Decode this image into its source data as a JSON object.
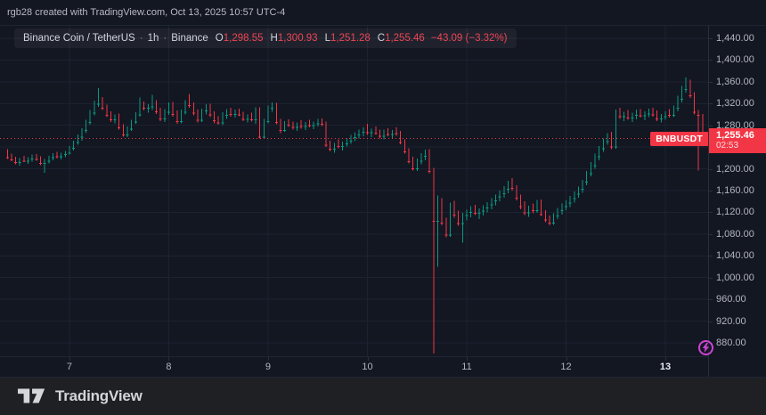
{
  "header": {
    "caption": "rgb28 created with TradingView.com, Oct 13, 2025 10:57 UTC-4"
  },
  "legend": {
    "symbol_title": "Binance Coin / TetherUS",
    "separator": "·",
    "interval": "1h",
    "exchange": "Binance",
    "ohlc": [
      {
        "label": "O",
        "value": "1,298.55"
      },
      {
        "label": "H",
        "value": "1,300.93"
      },
      {
        "label": "L",
        "value": "1,251.28"
      },
      {
        "label": "C",
        "value": "1,255.46"
      }
    ],
    "change": "−43.09 (−3.32%)"
  },
  "price_scale": {
    "ticks": [
      {
        "value": 1440,
        "label": "1,440.00"
      },
      {
        "value": 1400,
        "label": "1,400.00"
      },
      {
        "value": 1360,
        "label": "1,360.00"
      },
      {
        "value": 1320,
        "label": "1,320.00"
      },
      {
        "value": 1280,
        "label": "1,280.00"
      },
      {
        "value": 1200,
        "label": "1,200.00"
      },
      {
        "value": 1160,
        "label": "1,160.00"
      },
      {
        "value": 1120,
        "label": "1,120.00"
      },
      {
        "value": 1080,
        "label": "1,080.00"
      },
      {
        "value": 1040,
        "label": "1,040.00"
      },
      {
        "value": 1000,
        "label": "1,000.00"
      },
      {
        "value": 960,
        "label": "960.00"
      },
      {
        "value": 920,
        "label": "920.00"
      },
      {
        "value": 880,
        "label": "880.00"
      }
    ],
    "last_price_label": {
      "price": "1,255.46",
      "countdown": "02:53"
    }
  },
  "symbol_tag": {
    "text": "BNBUSDT"
  },
  "time_scale": {
    "labels": [
      {
        "text": "7",
        "emphasized": false
      },
      {
        "text": "8",
        "emphasized": false
      },
      {
        "text": "9",
        "emphasized": false
      },
      {
        "text": "10",
        "emphasized": false
      },
      {
        "text": "11",
        "emphasized": false
      },
      {
        "text": "12",
        "emphasized": false
      },
      {
        "text": "13",
        "emphasized": true
      }
    ]
  },
  "boost": {
    "icon": "lightning-icon"
  },
  "footer": {
    "brand": "TradingView"
  },
  "colors": {
    "background": "#131722",
    "up": "#089981",
    "down": "#f23645",
    "accent_red": "#f23645",
    "grid": "#1d2231",
    "axis_text": "#b2b5be",
    "boost": "#cd43d6"
  },
  "chart_data": {
    "type": "candlestick",
    "title": "Binance Coin / TetherUS, 1h, Binance",
    "symbol": "BNBUSDT",
    "timeframe": "1h",
    "last": {
      "open": 1298.55,
      "high": 1300.93,
      "low": 1251.28,
      "close": 1255.46,
      "change": -43.09,
      "change_pct": -3.32
    },
    "x_axis": {
      "labels": [
        "7",
        "8",
        "9",
        "10",
        "11",
        "12",
        "13"
      ],
      "unit": "day of month, Oct 2025",
      "day_start_indices": [
        15,
        39,
        63,
        87,
        111,
        135,
        159
      ],
      "hours_per_candle": 1
    },
    "y_axis": {
      "visible_range": [
        856,
        1452
      ],
      "grid_values": [
        1440,
        1400,
        1360,
        1320,
        1280,
        1240,
        1200,
        1160,
        1120,
        1080,
        1040,
        1000,
        960,
        920,
        880
      ]
    },
    "price_line_value": 1255.46,
    "candles": [
      [
        1232,
        1236,
        1218,
        1221
      ],
      [
        1221,
        1228,
        1214,
        1217
      ],
      [
        1217,
        1222,
        1208,
        1212
      ],
      [
        1212,
        1220,
        1206,
        1218
      ],
      [
        1218,
        1224,
        1212,
        1215
      ],
      [
        1215,
        1221,
        1209,
        1219
      ],
      [
        1219,
        1226,
        1213,
        1222
      ],
      [
        1222,
        1227,
        1215,
        1218
      ],
      [
        1218,
        1223,
        1207,
        1211
      ],
      [
        1211,
        1218,
        1193,
        1215
      ],
      [
        1215,
        1224,
        1210,
        1221
      ],
      [
        1221,
        1229,
        1216,
        1226
      ],
      [
        1226,
        1231,
        1219,
        1223
      ],
      [
        1223,
        1230,
        1217,
        1227
      ],
      [
        1227,
        1233,
        1221,
        1230
      ],
      [
        1230,
        1242,
        1226,
        1239
      ],
      [
        1239,
        1252,
        1234,
        1249
      ],
      [
        1249,
        1263,
        1244,
        1259
      ],
      [
        1259,
        1275,
        1252,
        1271
      ],
      [
        1271,
        1290,
        1266,
        1286
      ],
      [
        1286,
        1308,
        1281,
        1303
      ],
      [
        1303,
        1325,
        1298,
        1320
      ],
      [
        1320,
        1348,
        1314,
        1326
      ],
      [
        1326,
        1332,
        1308,
        1312
      ],
      [
        1312,
        1318,
        1295,
        1299
      ],
      [
        1299,
        1306,
        1286,
        1291
      ],
      [
        1291,
        1300,
        1284,
        1296
      ],
      [
        1296,
        1302,
        1272,
        1276
      ],
      [
        1276,
        1282,
        1259,
        1263
      ],
      [
        1263,
        1278,
        1258,
        1274
      ],
      [
        1274,
        1290,
        1270,
        1287
      ],
      [
        1287,
        1304,
        1283,
        1300
      ],
      [
        1300,
        1331,
        1296,
        1318
      ],
      [
        1318,
        1324,
        1307,
        1312
      ],
      [
        1312,
        1319,
        1303,
        1315
      ],
      [
        1315,
        1336,
        1308,
        1320
      ],
      [
        1320,
        1326,
        1301,
        1306
      ],
      [
        1306,
        1312,
        1288,
        1293
      ],
      [
        1293,
        1310,
        1286,
        1305
      ],
      [
        1305,
        1322,
        1299,
        1318
      ],
      [
        1318,
        1323,
        1296,
        1301
      ],
      [
        1301,
        1307,
        1283,
        1288
      ],
      [
        1288,
        1309,
        1284,
        1305
      ],
      [
        1305,
        1326,
        1300,
        1321
      ],
      [
        1321,
        1338,
        1312,
        1317
      ],
      [
        1317,
        1322,
        1298,
        1303
      ],
      [
        1303,
        1309,
        1285,
        1290
      ],
      [
        1290,
        1311,
        1286,
        1307
      ],
      [
        1307,
        1319,
        1300,
        1315
      ],
      [
        1315,
        1320,
        1295,
        1300
      ],
      [
        1300,
        1306,
        1284,
        1289
      ],
      [
        1289,
        1297,
        1281,
        1285
      ],
      [
        1285,
        1304,
        1280,
        1299
      ],
      [
        1299,
        1310,
        1292,
        1306
      ],
      [
        1306,
        1312,
        1296,
        1301
      ],
      [
        1301,
        1309,
        1294,
        1305
      ],
      [
        1305,
        1311,
        1297,
        1300
      ],
      [
        1300,
        1305,
        1288,
        1292
      ],
      [
        1292,
        1300,
        1285,
        1296
      ],
      [
        1296,
        1303,
        1287,
        1291
      ],
      [
        1291,
        1313,
        1283,
        1310
      ],
      [
        1310,
        1313,
        1256,
        1259
      ],
      [
        1259,
        1292,
        1255,
        1288
      ],
      [
        1288,
        1316,
        1284,
        1312
      ],
      [
        1312,
        1322,
        1305,
        1318
      ],
      [
        1318,
        1321,
        1282,
        1286
      ],
      [
        1286,
        1292,
        1266,
        1271
      ],
      [
        1271,
        1288,
        1268,
        1284
      ],
      [
        1284,
        1291,
        1277,
        1281
      ],
      [
        1281,
        1287,
        1272,
        1277
      ],
      [
        1277,
        1285,
        1270,
        1282
      ],
      [
        1282,
        1289,
        1274,
        1279
      ],
      [
        1279,
        1286,
        1271,
        1283
      ],
      [
        1283,
        1290,
        1276,
        1280
      ],
      [
        1280,
        1287,
        1273,
        1284
      ],
      [
        1284,
        1292,
        1278,
        1288
      ],
      [
        1288,
        1293,
        1279,
        1283
      ],
      [
        1283,
        1287,
        1240,
        1244
      ],
      [
        1244,
        1252,
        1232,
        1237
      ],
      [
        1237,
        1248,
        1230,
        1245
      ],
      [
        1245,
        1254,
        1238,
        1242
      ],
      [
        1242,
        1250,
        1234,
        1247
      ],
      [
        1247,
        1256,
        1241,
        1252
      ],
      [
        1252,
        1262,
        1246,
        1258
      ],
      [
        1258,
        1267,
        1251,
        1263
      ],
      [
        1263,
        1272,
        1256,
        1268
      ],
      [
        1268,
        1276,
        1260,
        1272
      ],
      [
        1272,
        1283,
        1262,
        1267
      ],
      [
        1267,
        1274,
        1258,
        1271
      ],
      [
        1271,
        1278,
        1263,
        1266
      ],
      [
        1266,
        1272,
        1256,
        1261
      ],
      [
        1261,
        1272,
        1254,
        1268
      ],
      [
        1268,
        1275,
        1260,
        1264
      ],
      [
        1264,
        1271,
        1257,
        1269
      ],
      [
        1269,
        1276,
        1261,
        1266
      ],
      [
        1266,
        1270,
        1245,
        1249
      ],
      [
        1249,
        1254,
        1228,
        1232
      ],
      [
        1232,
        1238,
        1210,
        1214
      ],
      [
        1214,
        1222,
        1197,
        1201
      ],
      [
        1201,
        1219,
        1196,
        1215
      ],
      [
        1215,
        1229,
        1208,
        1224
      ],
      [
        1224,
        1235,
        1216,
        1230
      ],
      [
        1230,
        1236,
        1192,
        1196
      ],
      [
        1196,
        1202,
        860,
        1104
      ],
      [
        1104,
        1151,
        1020,
        1140
      ],
      [
        1140,
        1146,
        1096,
        1101
      ],
      [
        1101,
        1110,
        1074,
        1079
      ],
      [
        1079,
        1138,
        1075,
        1134
      ],
      [
        1134,
        1141,
        1110,
        1116
      ],
      [
        1116,
        1123,
        1095,
        1100
      ],
      [
        1100,
        1119,
        1064,
        1115
      ],
      [
        1115,
        1125,
        1105,
        1121
      ],
      [
        1121,
        1131,
        1111,
        1127
      ],
      [
        1127,
        1134,
        1115,
        1119
      ],
      [
        1119,
        1127,
        1108,
        1123
      ],
      [
        1123,
        1133,
        1114,
        1129
      ],
      [
        1129,
        1139,
        1120,
        1135
      ],
      [
        1135,
        1146,
        1126,
        1142
      ],
      [
        1142,
        1153,
        1133,
        1149
      ],
      [
        1149,
        1160,
        1140,
        1155
      ],
      [
        1155,
        1168,
        1147,
        1163
      ],
      [
        1163,
        1178,
        1155,
        1174
      ],
      [
        1174,
        1183,
        1160,
        1165
      ],
      [
        1165,
        1170,
        1142,
        1147
      ],
      [
        1147,
        1153,
        1126,
        1131
      ],
      [
        1131,
        1140,
        1115,
        1120
      ],
      [
        1120,
        1132,
        1112,
        1128
      ],
      [
        1128,
        1136,
        1118,
        1124
      ],
      [
        1124,
        1143,
        1119,
        1139
      ],
      [
        1139,
        1144,
        1113,
        1117
      ],
      [
        1117,
        1124,
        1102,
        1107
      ],
      [
        1107,
        1114,
        1096,
        1101
      ],
      [
        1101,
        1118,
        1097,
        1114
      ],
      [
        1114,
        1128,
        1108,
        1124
      ],
      [
        1124,
        1136,
        1116,
        1131
      ],
      [
        1131,
        1142,
        1124,
        1138
      ],
      [
        1138,
        1150,
        1130,
        1146
      ],
      [
        1146,
        1158,
        1138,
        1154
      ],
      [
        1154,
        1167,
        1147,
        1163
      ],
      [
        1163,
        1180,
        1156,
        1176
      ],
      [
        1176,
        1196,
        1170,
        1192
      ],
      [
        1192,
        1212,
        1186,
        1207
      ],
      [
        1207,
        1228,
        1200,
        1223
      ],
      [
        1223,
        1242,
        1216,
        1238
      ],
      [
        1238,
        1256,
        1231,
        1251
      ],
      [
        1251,
        1266,
        1244,
        1261
      ],
      [
        1261,
        1268,
        1236,
        1241
      ],
      [
        1241,
        1309,
        1237,
        1303
      ],
      [
        1303,
        1312,
        1292,
        1297
      ],
      [
        1297,
        1305,
        1288,
        1301
      ],
      [
        1301,
        1308,
        1290,
        1294
      ],
      [
        1294,
        1303,
        1286,
        1299
      ],
      [
        1299,
        1309,
        1291,
        1304
      ],
      [
        1304,
        1310,
        1294,
        1298
      ],
      [
        1298,
        1306,
        1289,
        1302
      ],
      [
        1302,
        1311,
        1295,
        1306
      ],
      [
        1306,
        1312,
        1296,
        1300
      ],
      [
        1300,
        1307,
        1288,
        1293
      ],
      [
        1293,
        1301,
        1285,
        1297
      ],
      [
        1297,
        1306,
        1290,
        1302
      ],
      [
        1302,
        1310,
        1294,
        1299
      ],
      [
        1299,
        1316,
        1295,
        1312
      ],
      [
        1312,
        1334,
        1306,
        1329
      ],
      [
        1329,
        1352,
        1322,
        1347
      ],
      [
        1347,
        1368,
        1340,
        1358
      ],
      [
        1358,
        1364,
        1330,
        1335
      ],
      [
        1335,
        1341,
        1300,
        1305
      ],
      [
        1305,
        1308,
        1197,
        1299
      ],
      [
        1298.55,
        1300.93,
        1251.28,
        1255.46
      ]
    ]
  }
}
